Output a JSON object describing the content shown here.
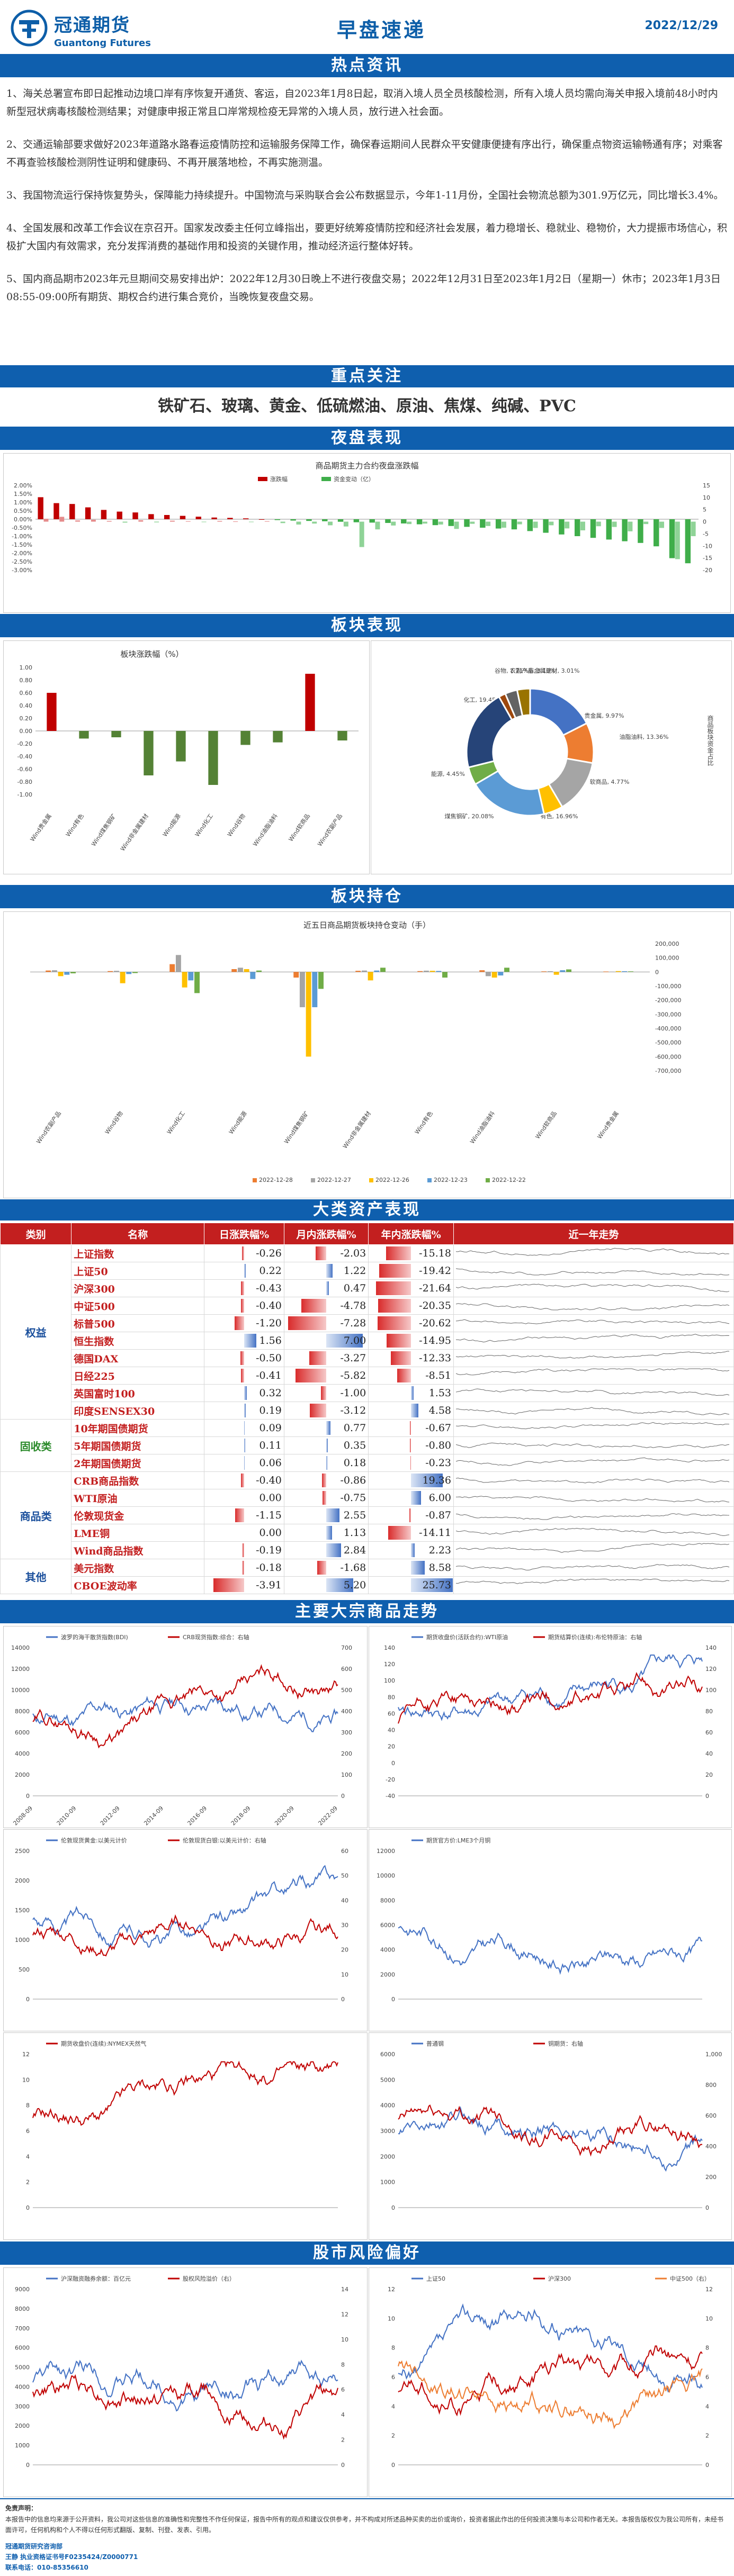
{
  "header": {
    "brand_cn": "冠通期货",
    "brand_en": "Guantong Futures",
    "title": "早盘速递",
    "date": "2022/12/29"
  },
  "sections": {
    "hot_news": "热点资讯",
    "focus": "重点关注",
    "night": "夜盘表现",
    "sector_perf": "板块表现",
    "sector_hold": "板块持仓",
    "assets": "大类资产表现",
    "commodity": "主要大宗商品走势",
    "stock_risk": "股市风险偏好"
  },
  "news": [
    "1、海关总署宣布即日起推动边境口岸有序恢复开通货、客运，自2023年1月8日起，取消入境人员全员核酸检测，所有入境人员均需向海关申报入境前48小时内新型冠状病毒核酸检测结果；对健康申报正常且口岸常规检疫无异常的入境人员，放行进入社会面。",
    "2、交通运输部要求做好2023年道路水路春运疫情防控和运输服务保障工作，确保春运期间人民群众平安健康便捷有序出行，确保重点物资运输畅通有序；对乘客不再查验核酸检测阴性证明和健康码、不再开展落地检，不再实施测温。",
    "3、我国物流运行保持恢复势头，保障能力持续提升。中国物流与采购联合会公布数据显示，今年1-11月份，全国社会物流总额为301.9万亿元，同比增长3.4%。",
    "4、全国发展和改革工作会议在京召开。国家发改委主任何立峰指出，要更好统筹疫情防控和经济社会发展，着力稳增长、稳就业、稳物价，大力提振市场信心，积极扩大国内有效需求，充分发挥消费的基础作用和投资的关键作用，推动经济运行整体好转。",
    "5、国内商品期市2023年元旦期间交易安排出炉：2022年12月30日晚上不进行夜盘交易；2022年12月31日至2023年1月2日（星期一）休市；2023年1月3日08:55-09:00所有期货、期权合约进行集合竞价，当晚恢复夜盘交易。"
  ],
  "focus_items": "铁矿石、玻璃、黄金、低硫燃油、原油、焦煤、纯碱、PVC",
  "colors": {
    "brand_blue": "#0f5fae",
    "header_red": "#c31f1f",
    "up_red": "#c00000",
    "down_green": "#3fae4a",
    "bar_gray": "#a5a5a5",
    "bar_blue": "#4472c4",
    "bar_orange": "#ed7d31",
    "bar_yellow": "#ffc000"
  },
  "night_chart": {
    "title": "商品期货主力合约夜盘涨跌幅",
    "legend": [
      "涨跌幅",
      "资金变动（亿）"
    ],
    "left_ticks": [
      "2.00%",
      "1.50%",
      "1.00%",
      "0.50%",
      "0.00%",
      "-0.50%",
      "-1.00%",
      "-1.50%",
      "-2.00%",
      "-2.50%",
      "-3.00%"
    ],
    "right_ticks": [
      "15",
      "10",
      "5",
      "0",
      "-5",
      "-10",
      "-15",
      "-20"
    ]
  },
  "chart_data": [
    {
      "type": "bar",
      "title": "商品期货主力合约夜盘涨跌幅",
      "series": [
        {
          "name": "涨跌幅",
          "unit": "%",
          "values": [
            1.3,
            0.95,
            0.9,
            0.7,
            0.55,
            0.45,
            0.4,
            0.3,
            0.25,
            0.2,
            0.15,
            0.1,
            0.08,
            0.05,
            0.0,
            -0.05,
            -0.08,
            -0.1,
            -0.12,
            -0.15,
            -0.18,
            -0.2,
            -0.22,
            -0.25,
            -0.3,
            -0.35,
            -0.4,
            -0.45,
            -0.5,
            -0.55,
            -0.6,
            -0.7,
            -0.8,
            -0.9,
            -1.0,
            -1.1,
            -1.2,
            -1.3,
            -1.4,
            -1.6,
            -2.3,
            -2.6
          ]
        },
        {
          "name": "资金变动（亿）",
          "values": [
            1.2,
            2.0,
            0.5,
            0.8,
            0.3,
            -0.4,
            0.6,
            -0.3,
            0.4,
            0.2,
            -0.2,
            0.3,
            0.1,
            -0.1,
            0.2,
            -0.6,
            -1.2,
            -0.8,
            -1.5,
            -2.0,
            -10.5,
            -3.2,
            -1.6,
            -1.0,
            -0.8,
            -1.2,
            -3.0,
            -0.9,
            -1.8,
            -2.5,
            -1.1,
            -2.6,
            -1.5,
            -2.8,
            -3.6,
            -1.9,
            -2.2,
            -4.0,
            -1.0,
            -2.6,
            -15.5,
            -6.0
          ]
        }
      ],
      "ylim_left": [
        -3.0,
        2.0
      ],
      "ylim_right": [
        -20,
        15
      ]
    },
    {
      "type": "bar",
      "title": "板块涨跌幅（%）",
      "categories": [
        "Wind贵金属",
        "Wind有色",
        "Wind煤焦钢矿",
        "Wind非金属建材",
        "Wind能源",
        "Wind化工",
        "Wind谷物",
        "Wind油脂油料",
        "Wind软商品",
        "Wind农副产品"
      ],
      "values": [
        0.6,
        -0.12,
        -0.1,
        -0.7,
        -0.48,
        -0.85,
        -0.22,
        -0.18,
        0.9,
        -0.15
      ],
      "ylim": [
        -1.0,
        1.0
      ],
      "yticks": [
        "1.00",
        "0.80",
        "0.60",
        "0.40",
        "0.20",
        "0.00",
        "-0.20",
        "-0.40",
        "-0.60",
        "-0.80",
        "-1.00"
      ]
    },
    {
      "type": "pie",
      "title": "商品板块资金占比",
      "labels": [
        "有色",
        "贵金属",
        "油脂油料",
        "软商品",
        "化工",
        "能源",
        "煤焦钢矿",
        "谷物",
        "非金属建材",
        "农副产品"
      ],
      "label_texts": [
        "有色, 16.96%",
        "贵金属, 9.97%",
        "油脂油料, 13.36%",
        "软商品, 4.77%",
        "化工, 19.45%",
        "能源, 4.45%",
        "煤焦钢矿, 20.08%",
        "谷物, 1.71%",
        "非金属建材, 3.01%",
        "农副产品, 3.19%"
      ],
      "values": [
        16.96,
        9.97,
        13.36,
        4.77,
        19.45,
        4.45,
        20.08,
        1.71,
        3.01,
        3.19
      ]
    },
    {
      "type": "bar",
      "title": "近五日商品期货板块持仓变动（手）",
      "categories": [
        "Wind农副产品",
        "Wind谷物",
        "Wind化工",
        "Wind能源",
        "Wind煤焦钢矿",
        "Wind非金属建材",
        "Wind有色",
        "Wind油脂油料",
        "Wind软商品",
        "Wind贵金属"
      ],
      "series": [
        {
          "name": "2022-12-28",
          "values": [
            10000,
            6000,
            55000,
            20000,
            -40000,
            8000,
            6000,
            12000,
            4000,
            3000
          ]
        },
        {
          "name": "2022-12-27",
          "values": [
            12000,
            8000,
            120000,
            30000,
            -250000,
            10000,
            9000,
            -30000,
            5000,
            2000
          ]
        },
        {
          "name": "2022-12-26",
          "values": [
            -30000,
            -80000,
            -110000,
            20000,
            -600000,
            -60000,
            8000,
            -40000,
            -20000,
            6000
          ]
        },
        {
          "name": "2022-12-23",
          "values": [
            -20000,
            -15000,
            -60000,
            -50000,
            -250000,
            10000,
            7000,
            -25000,
            12000,
            5000
          ]
        },
        {
          "name": "2022-12-22",
          "values": [
            -10000,
            -8000,
            -150000,
            10000,
            -120000,
            30000,
            -40000,
            30000,
            18000,
            4000
          ]
        }
      ],
      "yticks": [
        "200,000",
        "100,000",
        "0",
        "-100,000",
        "-200,000",
        "-300,000",
        "-400,000",
        "-500,000",
        "-600,000",
        "-700,000"
      ]
    },
    {
      "type": "table",
      "title": "大类资产表现",
      "columns": [
        "类别",
        "名称",
        "日涨跌幅%",
        "月内涨跌幅%",
        "年内涨跌幅%",
        "近一年走势"
      ],
      "rows": [
        [
          "权益",
          "上证指数",
          "-0.26",
          "-2.03",
          "-15.18"
        ],
        [
          "权益",
          "上证50",
          "0.22",
          "1.22",
          "-19.42"
        ],
        [
          "权益",
          "沪深300",
          "-0.43",
          "0.47",
          "-21.64"
        ],
        [
          "权益",
          "中证500",
          "-0.40",
          "-4.78",
          "-20.35"
        ],
        [
          "权益",
          "标普500",
          "-1.20",
          "-7.28",
          "-20.62"
        ],
        [
          "权益",
          "恒生指数",
          "1.56",
          "7.00",
          "-14.95"
        ],
        [
          "权益",
          "德国DAX",
          "-0.50",
          "-3.27",
          "-12.33"
        ],
        [
          "权益",
          "日经225",
          "-0.41",
          "-5.82",
          "-8.51"
        ],
        [
          "权益",
          "英国富时100",
          "0.32",
          "-1.00",
          "1.53"
        ],
        [
          "权益",
          "印度SENSEX30",
          "0.19",
          "-3.12",
          "4.58"
        ],
        [
          "固收类",
          "10年期国债期货",
          "0.09",
          "0.77",
          "-0.67"
        ],
        [
          "固收类",
          "5年期国债期货",
          "0.11",
          "0.35",
          "-0.80"
        ],
        [
          "固收类",
          "2年期国债期货",
          "0.06",
          "0.18",
          "-0.23"
        ],
        [
          "商品类",
          "CRB商品指数",
          "-0.40",
          "-0.86",
          "19.36"
        ],
        [
          "商品类",
          "WTI原油",
          "0.00",
          "-0.75",
          "6.00"
        ],
        [
          "商品类",
          "伦敦现货金",
          "-1.15",
          "2.55",
          "-0.87"
        ],
        [
          "商品类",
          "LME铜",
          "0.00",
          "1.13",
          "-14.11"
        ],
        [
          "商品类",
          "Wind商品指数",
          "-0.19",
          "2.84",
          "2.23"
        ],
        [
          "其他",
          "美元指数",
          "-0.18",
          "-1.68",
          "8.58"
        ],
        [
          "其他",
          "CBOE波动率",
          "-3.91",
          "5.20",
          "25.73"
        ]
      ]
    }
  ],
  "asset_table": {
    "headers": [
      "类别",
      "名称",
      "日涨跌幅%",
      "月内涨跌幅%",
      "年内涨跌幅%",
      "近一年走势"
    ],
    "groups": [
      {
        "cat": "权益",
        "rows": [
          {
            "name": "上证指数",
            "d": "-0.26",
            "m": "-2.03",
            "y": "-15.18"
          },
          {
            "name": "上证50",
            "d": "0.22",
            "m": "1.22",
            "y": "-19.42"
          },
          {
            "name": "沪深300",
            "d": "-0.43",
            "m": "0.47",
            "y": "-21.64"
          },
          {
            "name": "中证500",
            "d": "-0.40",
            "m": "-4.78",
            "y": "-20.35"
          },
          {
            "name": "标普500",
            "d": "-1.20",
            "m": "-7.28",
            "y": "-20.62"
          },
          {
            "name": "恒生指数",
            "d": "1.56",
            "m": "7.00",
            "y": "-14.95"
          },
          {
            "name": "德国DAX",
            "d": "-0.50",
            "m": "-3.27",
            "y": "-12.33"
          },
          {
            "name": "日经225",
            "d": "-0.41",
            "m": "-5.82",
            "y": "-8.51"
          },
          {
            "name": "英国富时100",
            "d": "0.32",
            "m": "-1.00",
            "y": "1.53"
          },
          {
            "name": "印度SENSEX30",
            "d": "0.19",
            "m": "-3.12",
            "y": "4.58"
          }
        ]
      },
      {
        "cat": "固收类",
        "rows": [
          {
            "name": "10年期国债期货",
            "d": "0.09",
            "m": "0.77",
            "y": "-0.67"
          },
          {
            "name": "5年期国债期货",
            "d": "0.11",
            "m": "0.35",
            "y": "-0.80"
          },
          {
            "name": "2年期国债期货",
            "d": "0.06",
            "m": "0.18",
            "y": "-0.23"
          }
        ]
      },
      {
        "cat": "商品类",
        "rows": [
          {
            "name": "CRB商品指数",
            "d": "-0.40",
            "m": "-0.86",
            "y": "19.36"
          },
          {
            "name": "WTI原油",
            "d": "0.00",
            "m": "-0.75",
            "y": "6.00"
          },
          {
            "name": "伦敦现货金",
            "d": "-1.15",
            "m": "2.55",
            "y": "-0.87"
          },
          {
            "name": "LME铜",
            "d": "0.00",
            "m": "1.13",
            "y": "-14.11"
          },
          {
            "name": "Wind商品指数",
            "d": "-0.19",
            "m": "2.84",
            "y": "2.23"
          }
        ]
      },
      {
        "cat": "其他",
        "rows": [
          {
            "name": "美元指数",
            "d": "-0.18",
            "m": "-1.68",
            "y": "8.58"
          },
          {
            "name": "CBOE波动率",
            "d": "-3.91",
            "m": "5.20",
            "y": "25.73"
          }
        ]
      }
    ]
  },
  "sector_bar": {
    "title": "板块涨跌幅（%）"
  },
  "sector_pie": {
    "side_label": "商品板块资金占比"
  },
  "hold_chart": {
    "title": "近五日商品期货板块持仓变动（手）"
  },
  "commodity_charts": [
    {
      "legend": [
        "波罗的海干散货指数(BDI)",
        "CRB现货指数:综合：右轴"
      ],
      "years": [
        "2008-09",
        "2010-09",
        "2012-09",
        "2014-09",
        "2016-09",
        "2018-09",
        "2020-09",
        "2022-09"
      ],
      "left_ticks": [
        "14000",
        "12000",
        "10000",
        "8000",
        "6000",
        "4000",
        "2000",
        "0"
      ],
      "right_ticks": [
        "700",
        "600",
        "500",
        "400",
        "300",
        "200",
        "100",
        "0"
      ]
    },
    {
      "legend": [
        "期货收盘价(活跃合约):WTI原油",
        "期货结算价(连续):布伦特原油：右轴"
      ],
      "left_ticks": [
        "140",
        "120",
        "100",
        "80",
        "60",
        "40",
        "20",
        "0",
        "-20",
        "-40"
      ],
      "right_ticks": [
        "140",
        "120",
        "100",
        "80",
        "60",
        "40",
        "20",
        "0"
      ]
    },
    {
      "legend": [
        "伦敦现货黄金:以美元计价",
        "伦敦现货白银:以美元计价：右轴"
      ],
      "left_ticks": [
        "2500",
        "2000",
        "1500",
        "1000",
        "500",
        "0"
      ],
      "right_ticks": [
        "60",
        "50",
        "40",
        "30",
        "20",
        "10",
        "0"
      ]
    },
    {
      "legend": [
        "期货官方价:LME3个月铜"
      ],
      "left_ticks": [
        "12000",
        "10000",
        "8000",
        "6000",
        "4000",
        "2000",
        "0"
      ]
    },
    {
      "legend": [
        "期货收盘价(连续):NYMEX天然气"
      ],
      "left_ticks": [
        "12",
        "10",
        "8",
        "6",
        "4",
        "2",
        "0"
      ]
    },
    {
      "legend": [
        "普通钢",
        "铜期货：右轴"
      ],
      "left_ticks": [
        "6000",
        "5000",
        "4000",
        "3000",
        "2000",
        "1000",
        "0"
      ],
      "right_ticks": [
        "1,000",
        "800",
        "600",
        "400",
        "200",
        "0"
      ]
    }
  ],
  "risk_charts": [
    {
      "legend": [
        "沪深融资融券余额：百亿元",
        "股权风险溢价（右）"
      ],
      "left_ticks": [
        "9000",
        "8000",
        "7000",
        "6000",
        "5000",
        "4000",
        "3000",
        "2000",
        "1000",
        "0"
      ],
      "right_ticks": [
        "14",
        "12",
        "10",
        "8",
        "6",
        "4",
        "2",
        "0"
      ]
    },
    {
      "legend": [
        "上证50",
        "沪深300",
        "中证500（右）"
      ],
      "left_label": "风险溢价",
      "right_label": "风险溢价",
      "left_ticks": [
        "12",
        "10",
        "8",
        "6",
        "4",
        "2",
        "0"
      ],
      "right_ticks": [
        "12",
        "10",
        "8",
        "6",
        "4",
        "2",
        "0"
      ]
    }
  ],
  "footer": {
    "line1": "免责声明：",
    "line2": "本报告中的信息均来源于公开资料，我公司对这些信息的准确性和完整性不作任何保证，报告中所有的观点和建议仅供参考，并不构成对所述品种买卖的出价或询价，投资者据此作出的任何投资决策与本公司和作者无关。本报告版权仅为我公司所有，未经书面许可，任何机构和个人不得以任何形式翻版、复制、刊登、发表、引用。",
    "line3": "冠通期货研究咨询部",
    "line4": "王静  执业资格证书号F0235424/Z0000771",
    "line5": "联系电话：010-85356610"
  }
}
